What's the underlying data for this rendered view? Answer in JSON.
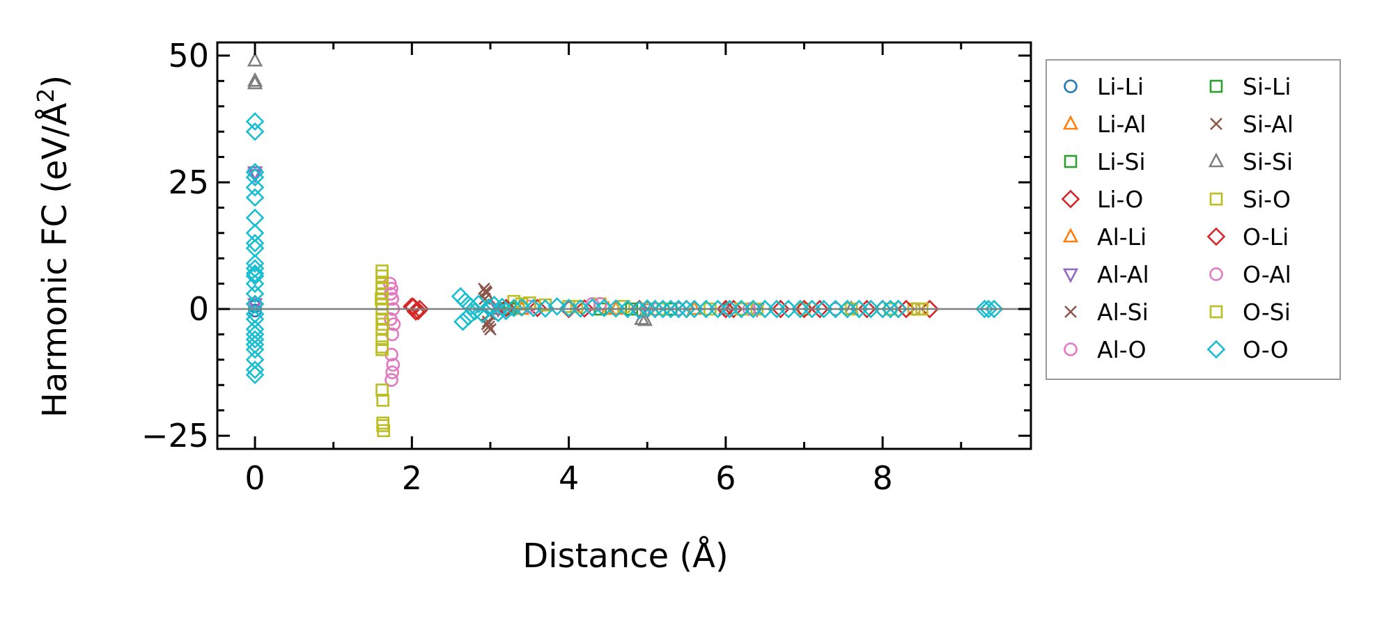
{
  "chart_data": {
    "type": "scatter",
    "title": "",
    "xlabel": "Distance (Å)",
    "ylabel": "Harmonic FC (eV/Å²)",
    "ylabel_main": "Harmonic FC (eV/Å",
    "ylabel_sup": "2",
    "ylabel_end": ")",
    "xlim": [
      -0.48,
      9.89
    ],
    "ylim": [
      -27.6,
      52.6
    ],
    "xticks": [
      0,
      2,
      4,
      6,
      8
    ],
    "xtick_labels": [
      "0",
      "2",
      "4",
      "6",
      "8"
    ],
    "yticks": [
      -25,
      0,
      25,
      50
    ],
    "ytick_labels": [
      "−25",
      "0",
      "25",
      "50"
    ],
    "grid": false,
    "zero_line": true,
    "legend_position": "outside-right",
    "series": [
      {
        "name": "Li-Li",
        "marker": "circle",
        "color": "#1f77b4",
        "x": [
          0,
          0
        ],
        "y": [
          0.5,
          -0.3
        ]
      },
      {
        "name": "Li-Al",
        "marker": "triangle-up",
        "color": "#ff7f0e",
        "x": [
          3.3,
          4.5,
          5.6
        ],
        "y": [
          0.1,
          0,
          0
        ]
      },
      {
        "name": "Li-Si",
        "marker": "square",
        "color": "#2ca02c",
        "x": [
          3.2,
          4.4,
          5.3
        ],
        "y": [
          0.1,
          0,
          0
        ]
      },
      {
        "name": "Li-O",
        "marker": "diamond",
        "color": "#d62728",
        "x": [
          2.0,
          2.05,
          2.1,
          3.0,
          3.6,
          4.2,
          4.9,
          5.5,
          6.1,
          6.7,
          7.2,
          7.8,
          8.2,
          8.6
        ],
        "y": [
          0.5,
          -0.5,
          0,
          0.3,
          0.2,
          0.1,
          0,
          0,
          0,
          0,
          0,
          0,
          0,
          0
        ]
      },
      {
        "name": "Al-Li",
        "marker": "triangle-up",
        "color": "#ff7f0e",
        "x": [
          3.4,
          4.6
        ],
        "y": [
          0,
          0
        ]
      },
      {
        "name": "Al-Al",
        "marker": "triangle-down",
        "color": "#9467bd",
        "x": [
          0,
          0,
          0,
          3.1,
          5.0,
          6.4
        ],
        "y": [
          27,
          26.5,
          1,
          0,
          0,
          0
        ]
      },
      {
        "name": "Al-Si",
        "marker": "x",
        "color": "#8c564b",
        "x": [
          2.92,
          2.95,
          2.98,
          3.0,
          2.93,
          2.97
        ],
        "y": [
          4,
          3.2,
          -3.5,
          -4,
          2,
          -2.5
        ]
      },
      {
        "name": "Al-O",
        "marker": "circle",
        "color": "#e377c2",
        "x": [
          0,
          1.72,
          1.74,
          1.75,
          1.76,
          1.73,
          1.75,
          1.74,
          1.76,
          1.75,
          1.74,
          3.5,
          4.3,
          5.1,
          6.3,
          7.4,
          8.4
        ],
        "y": [
          1,
          5,
          4,
          2,
          0,
          -2,
          -5,
          -9,
          -11,
          -12.5,
          -14,
          0.5,
          1,
          0,
          0,
          0,
          0
        ]
      },
      {
        "name": "Si-Li",
        "marker": "square",
        "color": "#2ca02c",
        "x": [
          3.25,
          4.8
        ],
        "y": [
          0,
          0
        ]
      },
      {
        "name": "Si-Al",
        "marker": "x",
        "color": "#8c564b",
        "x": [
          2.94,
          2.96,
          2.99
        ],
        "y": [
          3.5,
          -3,
          -1
        ]
      },
      {
        "name": "Si-Si",
        "marker": "triangle-up",
        "color": "#7f7f7f",
        "x": [
          0,
          0,
          0,
          3.1,
          4.93,
          4.97,
          6.0,
          7.6
        ],
        "y": [
          49,
          45,
          44.5,
          0,
          -2,
          -2.2,
          0,
          0
        ]
      },
      {
        "name": "Si-O",
        "marker": "square",
        "color": "#bcbd22",
        "x": [
          1.62,
          1.62,
          1.62,
          1.62,
          1.62,
          1.62,
          1.62,
          1.62,
          1.62,
          1.62,
          1.62,
          1.62,
          1.62,
          1.63,
          1.63,
          1.64,
          1.63,
          3.3,
          3.5,
          3.7,
          4.0,
          4.4,
          4.7,
          5.2,
          5.8,
          6.4,
          7.0,
          7.6,
          8.1,
          8.4,
          8.5
        ],
        "y": [
          7.5,
          6.5,
          5,
          4,
          3,
          1,
          0,
          -2,
          -4,
          -6,
          -7.5,
          -8,
          -16,
          -18,
          -23,
          -24,
          -22.5,
          1.5,
          1.2,
          0.8,
          0.5,
          1,
          0.5,
          0,
          0,
          0,
          0,
          0,
          0,
          0,
          0
        ]
      },
      {
        "name": "O-Li",
        "marker": "diamond",
        "color": "#d62728",
        "x": [
          2.02,
          2.08,
          3.2,
          4.0,
          5.0,
          6.0,
          7.0,
          8.0,
          8.3
        ],
        "y": [
          0.4,
          -0.4,
          0.2,
          0,
          0,
          0,
          0,
          0,
          0
        ]
      },
      {
        "name": "O-Al",
        "marker": "circle",
        "color": "#e377c2",
        "x": [
          1.73,
          1.77,
          4.4,
          5.4
        ],
        "y": [
          3,
          -3,
          1,
          0
        ]
      },
      {
        "name": "O-Si",
        "marker": "square",
        "color": "#bcbd22",
        "x": [
          1.61,
          1.63,
          3.4,
          4.1,
          5.0,
          6.2,
          8.45
        ],
        "y": [
          2,
          -3,
          1,
          0.5,
          0,
          0,
          0
        ]
      },
      {
        "name": "O-O",
        "marker": "diamond",
        "color": "#17becf",
        "x": [
          0,
          0,
          0,
          0,
          0,
          0,
          0,
          0,
          0,
          0,
          0,
          0,
          0,
          0,
          0,
          0,
          0,
          0,
          0,
          0,
          0,
          0,
          0,
          0,
          0,
          0,
          0,
          2.62,
          2.65,
          2.68,
          2.72,
          2.75,
          2.8,
          2.85,
          2.9,
          2.98,
          3.05,
          3.1,
          3.15,
          3.2,
          3.3,
          3.4,
          3.55,
          3.7,
          3.85,
          4.0,
          4.15,
          4.3,
          4.45,
          4.6,
          4.75,
          4.9,
          5.0,
          5.1,
          5.2,
          5.3,
          5.4,
          5.5,
          5.6,
          5.75,
          5.9,
          6.05,
          6.2,
          6.35,
          6.5,
          6.65,
          6.8,
          6.95,
          7.1,
          7.25,
          7.4,
          7.55,
          7.7,
          7.85,
          8.0,
          8.1,
          8.2,
          9.3,
          9.35,
          9.42
        ],
        "y": [
          37,
          35,
          27,
          26,
          24,
          22,
          18,
          15,
          13,
          12,
          9,
          8,
          7,
          6.5,
          5,
          3,
          1,
          -1,
          -2,
          -4,
          -5,
          -6,
          -7,
          -8,
          -10,
          -12,
          -13,
          2.5,
          -2.5,
          1.5,
          -1.5,
          0.5,
          -0.5,
          1,
          -1,
          0.3,
          0.8,
          -0.8,
          0.4,
          -0.4,
          0.2,
          0.3,
          0.2,
          0.1,
          0.5,
          0.2,
          0.1,
          0.3,
          0.2,
          0.1,
          0,
          -0.2,
          0.1,
          0,
          0,
          0,
          0,
          0,
          0,
          0,
          0,
          0,
          0,
          0,
          0,
          0,
          0,
          0,
          0,
          0,
          0,
          0,
          0,
          0,
          0,
          0,
          0,
          0,
          0,
          0
        ]
      }
    ],
    "legend_columns": 2
  }
}
